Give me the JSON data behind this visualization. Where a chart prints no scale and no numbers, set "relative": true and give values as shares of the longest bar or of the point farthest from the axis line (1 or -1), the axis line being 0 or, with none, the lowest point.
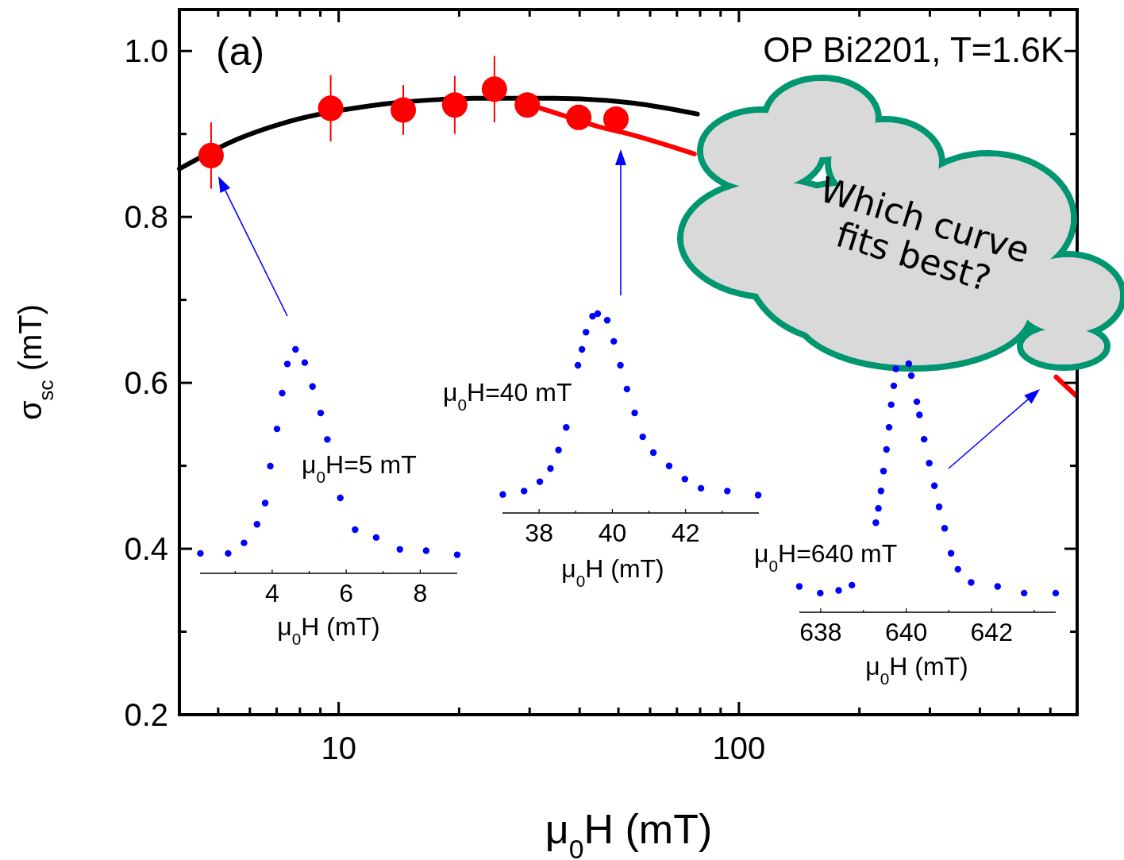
{
  "chart_data": [
    {
      "type": "scatter",
      "xlabel": "μ$_{0}$H (mT)",
      "ylabel": "σ$_{sc}$ (mT)",
      "annotations": [
        "(a)",
        "OP Bi2201, T=1.6K",
        "Which curve fits best?"
      ],
      "log": "x",
      "xlim": [
        4,
        700
      ],
      "xticks": [
        {
          "value": 5,
          "label": null
        },
        {
          "value": 6,
          "label": null
        },
        {
          "value": 7,
          "label": null
        },
        {
          "value": 8,
          "label": null
        },
        {
          "value": 9,
          "label": null
        },
        10,
        {
          "value": 20,
          "label": null
        },
        {
          "value": 30,
          "label": null
        },
        {
          "value": 40,
          "label": null
        },
        {
          "value": 50,
          "label": null
        },
        {
          "value": 60,
          "label": null
        },
        {
          "value": 70,
          "label": null
        },
        {
          "value": 80,
          "label": null
        },
        {
          "value": 90,
          "label": null
        },
        100,
        {
          "value": 200,
          "label": null
        },
        {
          "value": 300,
          "label": null
        },
        {
          "value": 400,
          "label": null
        },
        {
          "value": 500,
          "label": null
        },
        {
          "value": 600,
          "label": null
        }
      ],
      "ylim": [
        0.2,
        1.05
      ],
      "yticks": [
        0.2,
        {
          "value": 0.3,
          "label": null
        },
        0.4,
        {
          "value": 0.5,
          "label": null
        },
        0.6,
        {
          "value": 0.7,
          "label": null
        },
        0.8,
        {
          "value": 0.9,
          "label": null
        },
        {
          "value": 1,
          "label": "1.0"
        }
      ],
      "series": [
        {
          "type": "line",
          "marker": "none",
          "color": "#000000",
          "x": [
            4,
            5.6,
            7.5,
            12,
            17,
            22,
            34.7,
            54.8,
            78.8
          ],
          "values": [
            0.858,
            0.894,
            0.915,
            0.934,
            0.941,
            0.943,
            0.943,
            0.937,
            0.924
          ]
        },
        {
          "type": "line",
          "marker": "none",
          "color": "#ff0000",
          "x": [
            32,
            35,
            44.5,
            55,
            77.4
          ],
          "values": [
            0.931,
            0.925,
            0.909,
            0.898,
            0.876
          ]
        },
        {
          "type": "line",
          "marker": "none",
          "color": "#ff0000",
          "x": [
            620,
            694
          ],
          "values": [
            0.607,
            0.585
          ]
        },
        {
          "marker": "circle",
          "color": "#ff0000",
          "x": [
            4.8,
            9.55,
            14.5,
            19.5,
            24.5,
            29.6,
            39.8,
            49.3
          ],
          "values": [
            0.874,
            0.931,
            0.929,
            0.935,
            0.954,
            0.935,
            0.92,
            0.918
          ],
          "errors": [
            0.04,
            0.04,
            0.03,
            0.035,
            0.04,
            null,
            null,
            null
          ]
        }
      ]
    },
    {
      "type": "scatter",
      "relative": true,
      "tick_labels": "x",
      "marker": "circle",
      "color": "#0000ff",
      "xlabel": "μ$_{0}$H (mT)",
      "annotations": [
        "μ$_{0}$H=5 mT"
      ],
      "xlim": [
        2.05,
        9.0
      ],
      "xticks": [
        {
          "value": 3,
          "label": null
        },
        4,
        {
          "value": 5,
          "label": null
        },
        6,
        {
          "value": 7,
          "label": null
        },
        8
      ],
      "x": [
        2.06,
        2.81,
        3.24,
        3.59,
        3.81,
        3.95,
        4.13,
        4.27,
        4.41,
        4.63,
        4.88,
        5.09,
        5.31,
        5.49,
        5.84,
        6.24,
        6.81,
        7.45,
        8.16,
        9.0
      ],
      "values": [
        0.089,
        0.089,
        0.136,
        0.219,
        0.314,
        0.479,
        0.645,
        0.805,
        0.935,
        1,
        0.941,
        0.834,
        0.716,
        0.598,
        0.337,
        0.195,
        0.16,
        0.107,
        0.101,
        0.083
      ]
    },
    {
      "type": "scatter",
      "relative": true,
      "tick_labels": "x",
      "marker": "circle",
      "color": "#0000ff",
      "xlabel": "μ$_{0}$H (mT)",
      "annotations": [
        "μ$_{0}$H=40 mT"
      ],
      "xlim": [
        37.0,
        44.0
      ],
      "xticks": [
        38,
        {
          "value": 39,
          "label": null
        },
        40,
        {
          "value": 41,
          "label": null
        },
        42,
        {
          "value": 43,
          "label": null
        }
      ],
      "x": [
        37.01,
        37.59,
        38.02,
        38.31,
        38.53,
        38.74,
        39.06,
        39.17,
        39.28,
        39.46,
        39.6,
        39.86,
        40.04,
        40.22,
        40.4,
        40.61,
        40.83,
        41.12,
        41.55,
        41.98,
        42.42,
        43.14,
        43.98
      ],
      "values": [
        0.093,
        0.11,
        0.157,
        0.223,
        0.316,
        0.429,
        0.741,
        0.821,
        0.907,
        0.987,
        1,
        0.967,
        0.861,
        0.741,
        0.622,
        0.502,
        0.382,
        0.303,
        0.236,
        0.17,
        0.124,
        0.11,
        0.09
      ]
    },
    {
      "type": "scatter",
      "relative": true,
      "tick_labels": "x",
      "marker": "circle",
      "color": "#0000ff",
      "xlabel": "μ$_{0}$H (mT)",
      "annotations": [
        "μ$_{0}$H=640 mT"
      ],
      "xlim": [
        637.5,
        643.5
      ],
      "xticks": [
        638,
        {
          "value": 639,
          "label": null
        },
        640,
        {
          "value": 641,
          "label": null
        },
        642,
        {
          "value": 643,
          "label": null
        }
      ],
      "x": [
        637.5,
        637.99,
        638.42,
        638.73,
        639.29,
        639.35,
        639.41,
        639.47,
        639.54,
        639.6,
        639.65,
        639.71,
        639.76,
        640.06,
        640.12,
        640.25,
        640.31,
        640.42,
        640.54,
        640.66,
        640.77,
        640.9,
        641.05,
        641.21,
        641.52,
        642.14,
        642.76,
        643.5
      ],
      "values": [
        0.104,
        0.077,
        0.088,
        0.109,
        0.36,
        0.418,
        0.488,
        0.568,
        0.655,
        0.744,
        0.835,
        0.911,
        0.979,
        1,
        0.952,
        0.847,
        0.794,
        0.696,
        0.6,
        0.509,
        0.424,
        0.338,
        0.237,
        0.173,
        0.12,
        0.104,
        0.077,
        0.077
      ]
    }
  ]
}
